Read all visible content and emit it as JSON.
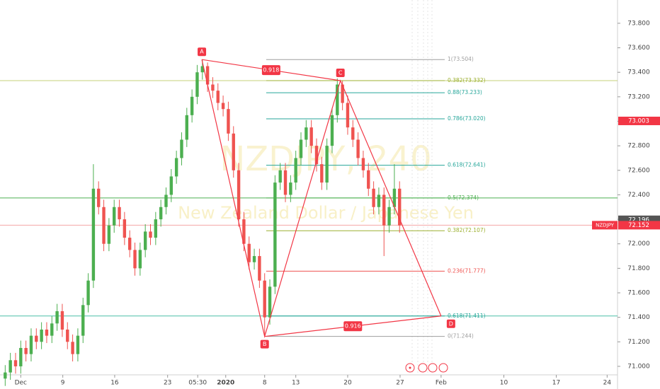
{
  "chart_data": {
    "type": "candlestick",
    "watermark": [
      "NZDJPY, 240",
      "New Zealand Dollar / Japanese Yen"
    ],
    "xlim": [
      -4,
      115
    ],
    "xticks": [
      {
        "value": 0,
        "label": "Dec"
      },
      {
        "value": 8.1,
        "label": "9"
      },
      {
        "value": 18.1,
        "label": "16"
      },
      {
        "value": 28.3,
        "label": "23"
      },
      {
        "value": 34.1,
        "label": "05:30"
      },
      {
        "value": 39.5,
        "label": "2020"
      },
      {
        "value": 47,
        "label": "8"
      },
      {
        "value": 53,
        "label": "13"
      },
      {
        "value": 63,
        "label": "20"
      },
      {
        "value": 73.1,
        "label": "27"
      },
      {
        "value": 81,
        "label": "Feb"
      },
      {
        "value": 93.1,
        "label": "10"
      },
      {
        "value": 103.2,
        "label": "17"
      },
      {
        "value": 113,
        "label": "24"
      }
    ],
    "ylim": [
      70.815,
      73.99
    ],
    "yticks": [
      {
        "value": 71,
        "label": "71.000"
      },
      {
        "value": 71.2,
        "label": "71.200"
      },
      {
        "value": 71.4,
        "label": "71.400"
      },
      {
        "value": 71.6,
        "label": "71.600"
      },
      {
        "value": 71.8,
        "label": "71.800"
      },
      {
        "value": 72,
        "label": "72.000"
      },
      {
        "value": 72.2,
        "label": "72.200"
      },
      {
        "value": 72.4,
        "label": "72.400"
      },
      {
        "value": 72.6,
        "label": "72.600"
      },
      {
        "value": 72.8,
        "label": "72.800"
      },
      {
        "value": 73,
        "label": "73.000"
      },
      {
        "value": 73.2,
        "label": "73.200"
      },
      {
        "value": 73.4,
        "label": "73.400"
      },
      {
        "value": 73.6,
        "label": "73.600"
      },
      {
        "value": 73.8,
        "label": "73.800"
      }
    ],
    "up_color": "#4caf50",
    "down_color": "#ef5350",
    "x": [
      -3,
      -2,
      -1,
      0,
      1,
      2,
      3,
      4,
      5,
      6,
      7,
      8,
      9,
      10,
      11,
      12,
      13,
      14,
      15,
      16,
      17,
      18,
      19,
      20,
      21,
      22,
      23,
      24,
      25,
      26,
      27,
      28,
      29,
      30,
      31,
      32,
      33,
      34,
      35,
      36,
      37,
      38,
      39,
      40,
      41,
      42,
      43,
      44,
      45,
      46,
      47,
      48,
      49,
      50,
      51,
      52,
      53,
      54,
      55,
      56,
      57,
      58,
      59,
      60,
      61,
      62,
      63,
      64,
      65,
      66,
      67,
      68,
      69,
      70,
      71,
      72,
      73
    ],
    "open": [
      70.9,
      70.95,
      71.05,
      71.0,
      71.15,
      71.1,
      71.25,
      71.2,
      71.3,
      71.25,
      71.35,
      71.45,
      71.3,
      71.2,
      71.1,
      71.25,
      71.5,
      71.7,
      72.45,
      72.3,
      72.0,
      72.15,
      72.3,
      72.2,
      72.05,
      71.95,
      71.8,
      71.95,
      72.1,
      72.05,
      72.2,
      72.3,
      72.4,
      72.55,
      72.7,
      72.85,
      73.05,
      73.2,
      73.4,
      73.45,
      73.3,
      73.25,
      73.15,
      73.1,
      72.9,
      72.6,
      72.2,
      72.0,
      71.85,
      71.9,
      71.7,
      71.4,
      71.65,
      72.5,
      72.6,
      72.4,
      72.5,
      72.7,
      72.85,
      72.95,
      72.8,
      72.65,
      72.5,
      72.8,
      73.05,
      73.3,
      73.15,
      72.95,
      72.85,
      72.7,
      72.6,
      72.45,
      72.3,
      72.4,
      72.15,
      72.3,
      72.45
    ],
    "high": [
      71.01,
      71.11,
      71.11,
      71.21,
      71.21,
      71.31,
      71.31,
      71.36,
      71.36,
      71.41,
      71.51,
      71.51,
      71.36,
      71.26,
      71.31,
      71.56,
      71.76,
      72.65,
      72.51,
      72.36,
      72.21,
      72.36,
      72.36,
      72.26,
      72.11,
      72.01,
      72.01,
      72.16,
      72.16,
      72.26,
      72.36,
      72.46,
      72.61,
      72.76,
      72.91,
      73.11,
      73.26,
      73.46,
      73.5,
      73.48,
      73.36,
      73.31,
      73.21,
      73.16,
      72.96,
      72.66,
      72.26,
      72.06,
      71.96,
      71.96,
      71.76,
      71.71,
      72.56,
      72.66,
      72.66,
      72.56,
      72.76,
      72.91,
      73.01,
      73.01,
      72.86,
      72.71,
      72.86,
      73.11,
      73.35,
      73.33,
      73.21,
      73.01,
      72.91,
      72.76,
      72.66,
      72.51,
      72.46,
      72.46,
      72.36,
      72.65,
      72.51
    ],
    "low": [
      70.84,
      70.89,
      70.94,
      70.94,
      71.04,
      71.04,
      71.14,
      71.14,
      71.19,
      71.19,
      71.29,
      71.24,
      71.14,
      71.04,
      71.04,
      71.19,
      71.44,
      71.64,
      72.24,
      71.94,
      71.94,
      72.09,
      72.14,
      71.99,
      71.89,
      71.74,
      71.74,
      71.89,
      71.99,
      71.99,
      72.14,
      72.24,
      72.34,
      72.49,
      72.64,
      72.79,
      72.99,
      73.14,
      73.34,
      73.24,
      73.19,
      73.09,
      73.04,
      72.84,
      72.54,
      72.14,
      71.94,
      71.79,
      71.79,
      71.64,
      71.25,
      71.34,
      71.59,
      72.44,
      72.34,
      72.34,
      72.44,
      72.64,
      72.79,
      72.74,
      72.59,
      72.44,
      72.44,
      72.74,
      72.99,
      73.09,
      72.89,
      72.79,
      72.64,
      72.54,
      72.39,
      72.24,
      72.24,
      71.9,
      72.09,
      72.24,
      72.09
    ],
    "close": [
      70.95,
      71.05,
      71.0,
      71.15,
      71.1,
      71.25,
      71.2,
      71.3,
      71.25,
      71.35,
      71.45,
      71.3,
      71.2,
      71.1,
      71.25,
      71.5,
      71.7,
      72.45,
      72.3,
      72.0,
      72.15,
      72.3,
      72.2,
      72.05,
      71.95,
      71.8,
      71.95,
      72.1,
      72.05,
      72.2,
      72.3,
      72.4,
      72.55,
      72.7,
      72.85,
      73.05,
      73.2,
      73.4,
      73.45,
      73.3,
      73.25,
      73.15,
      73.1,
      72.9,
      72.6,
      72.2,
      72.0,
      71.85,
      71.9,
      71.7,
      71.4,
      71.65,
      72.5,
      72.6,
      72.4,
      72.5,
      72.7,
      72.85,
      72.95,
      72.8,
      72.65,
      72.5,
      72.8,
      73.05,
      73.3,
      73.15,
      72.95,
      72.85,
      72.7,
      72.6,
      72.45,
      72.3,
      72.4,
      72.15,
      72.3,
      72.45,
      72.15
    ],
    "hlines": [
      {
        "value": 73.332,
        "color": "#c5d17a"
      },
      {
        "value": 72.374,
        "color": "#4caf50"
      },
      {
        "value": 72.152,
        "color": "#f4a6a6"
      },
      {
        "value": 71.411,
        "color": "#4dbfa8"
      }
    ],
    "fib_x": [
      47.3,
      81.7
    ],
    "fib_levels": [
      {
        "value": 73.504,
        "label": "1(73.504)",
        "color": "#9e9e9e"
      },
      {
        "value": 73.332,
        "label": "0.382(73.332)",
        "color": "#9cb030"
      },
      {
        "value": 73.233,
        "label": "0.88(73.233)",
        "color": "#26a69a"
      },
      {
        "value": 73.02,
        "label": "0.786(73.020)",
        "color": "#26a69a"
      },
      {
        "value": 72.641,
        "label": "0.618(72.641)",
        "color": "#26a69a"
      },
      {
        "value": 72.374,
        "label": "0.5(72.374)",
        "color": "#4caf50"
      },
      {
        "value": 72.107,
        "label": "0.382(72.107)",
        "color": "#9cb030"
      },
      {
        "value": 71.777,
        "label": "0.236(71.777)",
        "color": "#ef5350"
      },
      {
        "value": 71.411,
        "label": "0.618(71.411)",
        "color": "#26a69a"
      },
      {
        "value": 71.244,
        "label": "0(71.244)",
        "color": "#9e9e9e"
      }
    ],
    "pattern_color": "#f23645",
    "pattern": [
      {
        "label": "A",
        "x": 34.9,
        "y": 73.504
      },
      {
        "label": "B",
        "x": 47,
        "y": 71.244
      },
      {
        "label": "C",
        "x": 61.6,
        "y": 73.332
      },
      {
        "label": "D",
        "x": 81,
        "y": 71.411
      }
    ],
    "ratios": [
      {
        "label": "0.918",
        "from": 0,
        "to": 2
      },
      {
        "label": "0.916",
        "from": 1,
        "to": 3
      }
    ],
    "price_labels": [
      {
        "value": 73.003,
        "label": "73.003",
        "color": "#f23645"
      },
      {
        "value": 72.196,
        "label": "72.196",
        "color": "#555555"
      },
      {
        "value": 72.152,
        "label": "72.152",
        "symbol": "NZDJPY",
        "color": "#f23645"
      }
    ]
  }
}
